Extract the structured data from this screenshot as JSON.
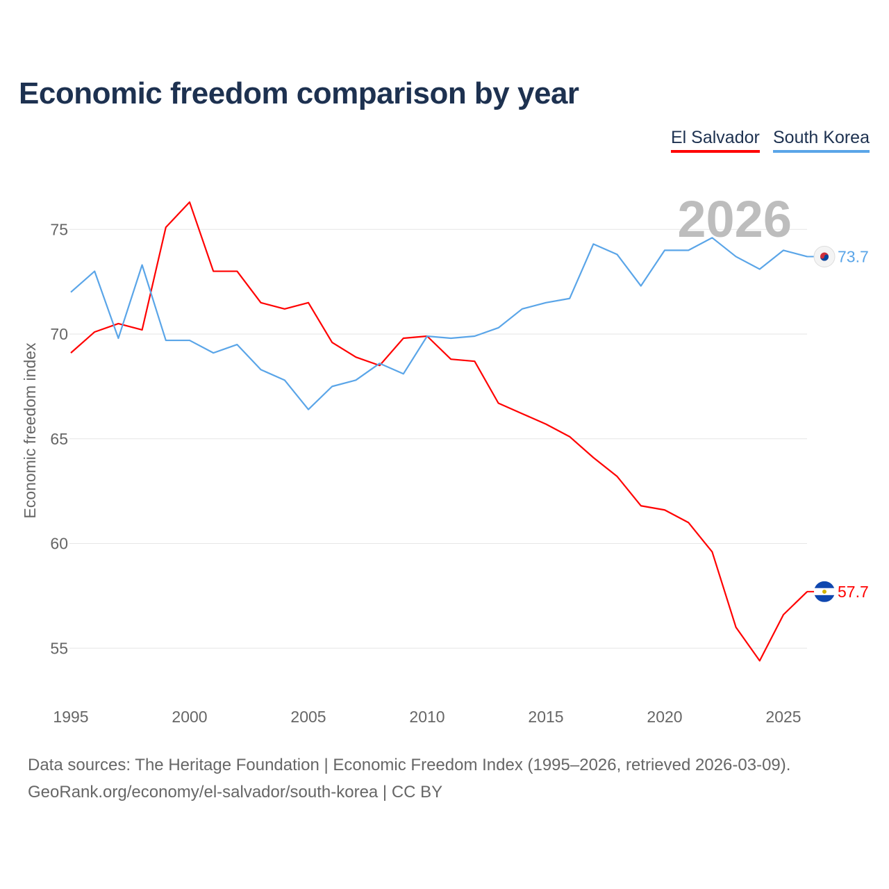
{
  "title": "Economic freedom comparison by year",
  "legend": [
    {
      "label": "El Salvador",
      "color": "#ff0000"
    },
    {
      "label": "South Korea",
      "color": "#5aa5e8"
    }
  ],
  "footer": {
    "line1": "Data sources: The Heritage Foundation | Economic Freedom Index (1995–2026, retrieved 2026-03-09).",
    "line2": "GeoRank.org/economy/el-salvador/south-korea | CC BY"
  },
  "chart_data": {
    "type": "line",
    "title": "Economic freedom comparison by year",
    "xlabel": "",
    "ylabel": "Economic freedom index",
    "year_watermark": "2026",
    "xlim": [
      1995,
      2026
    ],
    "ylim": [
      52.5,
      78
    ],
    "xticks": [
      "1995",
      "2000",
      "2005",
      "2010",
      "2015",
      "2020",
      "2025"
    ],
    "yticks": [
      "55",
      "60",
      "65",
      "70",
      "75"
    ],
    "grid": true,
    "x": [
      1995,
      1996,
      1997,
      1998,
      1999,
      2000,
      2001,
      2002,
      2003,
      2004,
      2005,
      2006,
      2007,
      2008,
      2009,
      2010,
      2011,
      2012,
      2013,
      2014,
      2015,
      2016,
      2017,
      2018,
      2019,
      2020,
      2021,
      2022,
      2023,
      2024,
      2025,
      2026
    ],
    "series": [
      {
        "name": "El Salvador",
        "color": "#ff0000",
        "end_label": "57.7",
        "flag": "el-salvador-flag",
        "values": [
          69.1,
          70.1,
          70.5,
          70.2,
          75.1,
          76.3,
          73.0,
          73.0,
          71.5,
          71.2,
          71.5,
          69.6,
          68.9,
          68.5,
          69.8,
          69.9,
          68.8,
          68.7,
          66.7,
          66.2,
          65.7,
          65.1,
          64.1,
          63.2,
          61.8,
          61.6,
          61.0,
          59.6,
          56.0,
          54.4,
          56.6,
          57.7
        ]
      },
      {
        "name": "South Korea",
        "color": "#5aa5e8",
        "end_label": "73.7",
        "flag": "south-korea-flag",
        "values": [
          72.0,
          73.0,
          69.8,
          73.3,
          69.7,
          69.7,
          69.1,
          69.5,
          68.3,
          67.8,
          66.4,
          67.5,
          67.8,
          68.6,
          68.1,
          69.9,
          69.8,
          69.9,
          70.3,
          71.2,
          71.5,
          71.7,
          74.3,
          73.8,
          72.3,
          74.0,
          74.0,
          74.6,
          73.7,
          73.1,
          74.0,
          73.7
        ]
      }
    ]
  }
}
